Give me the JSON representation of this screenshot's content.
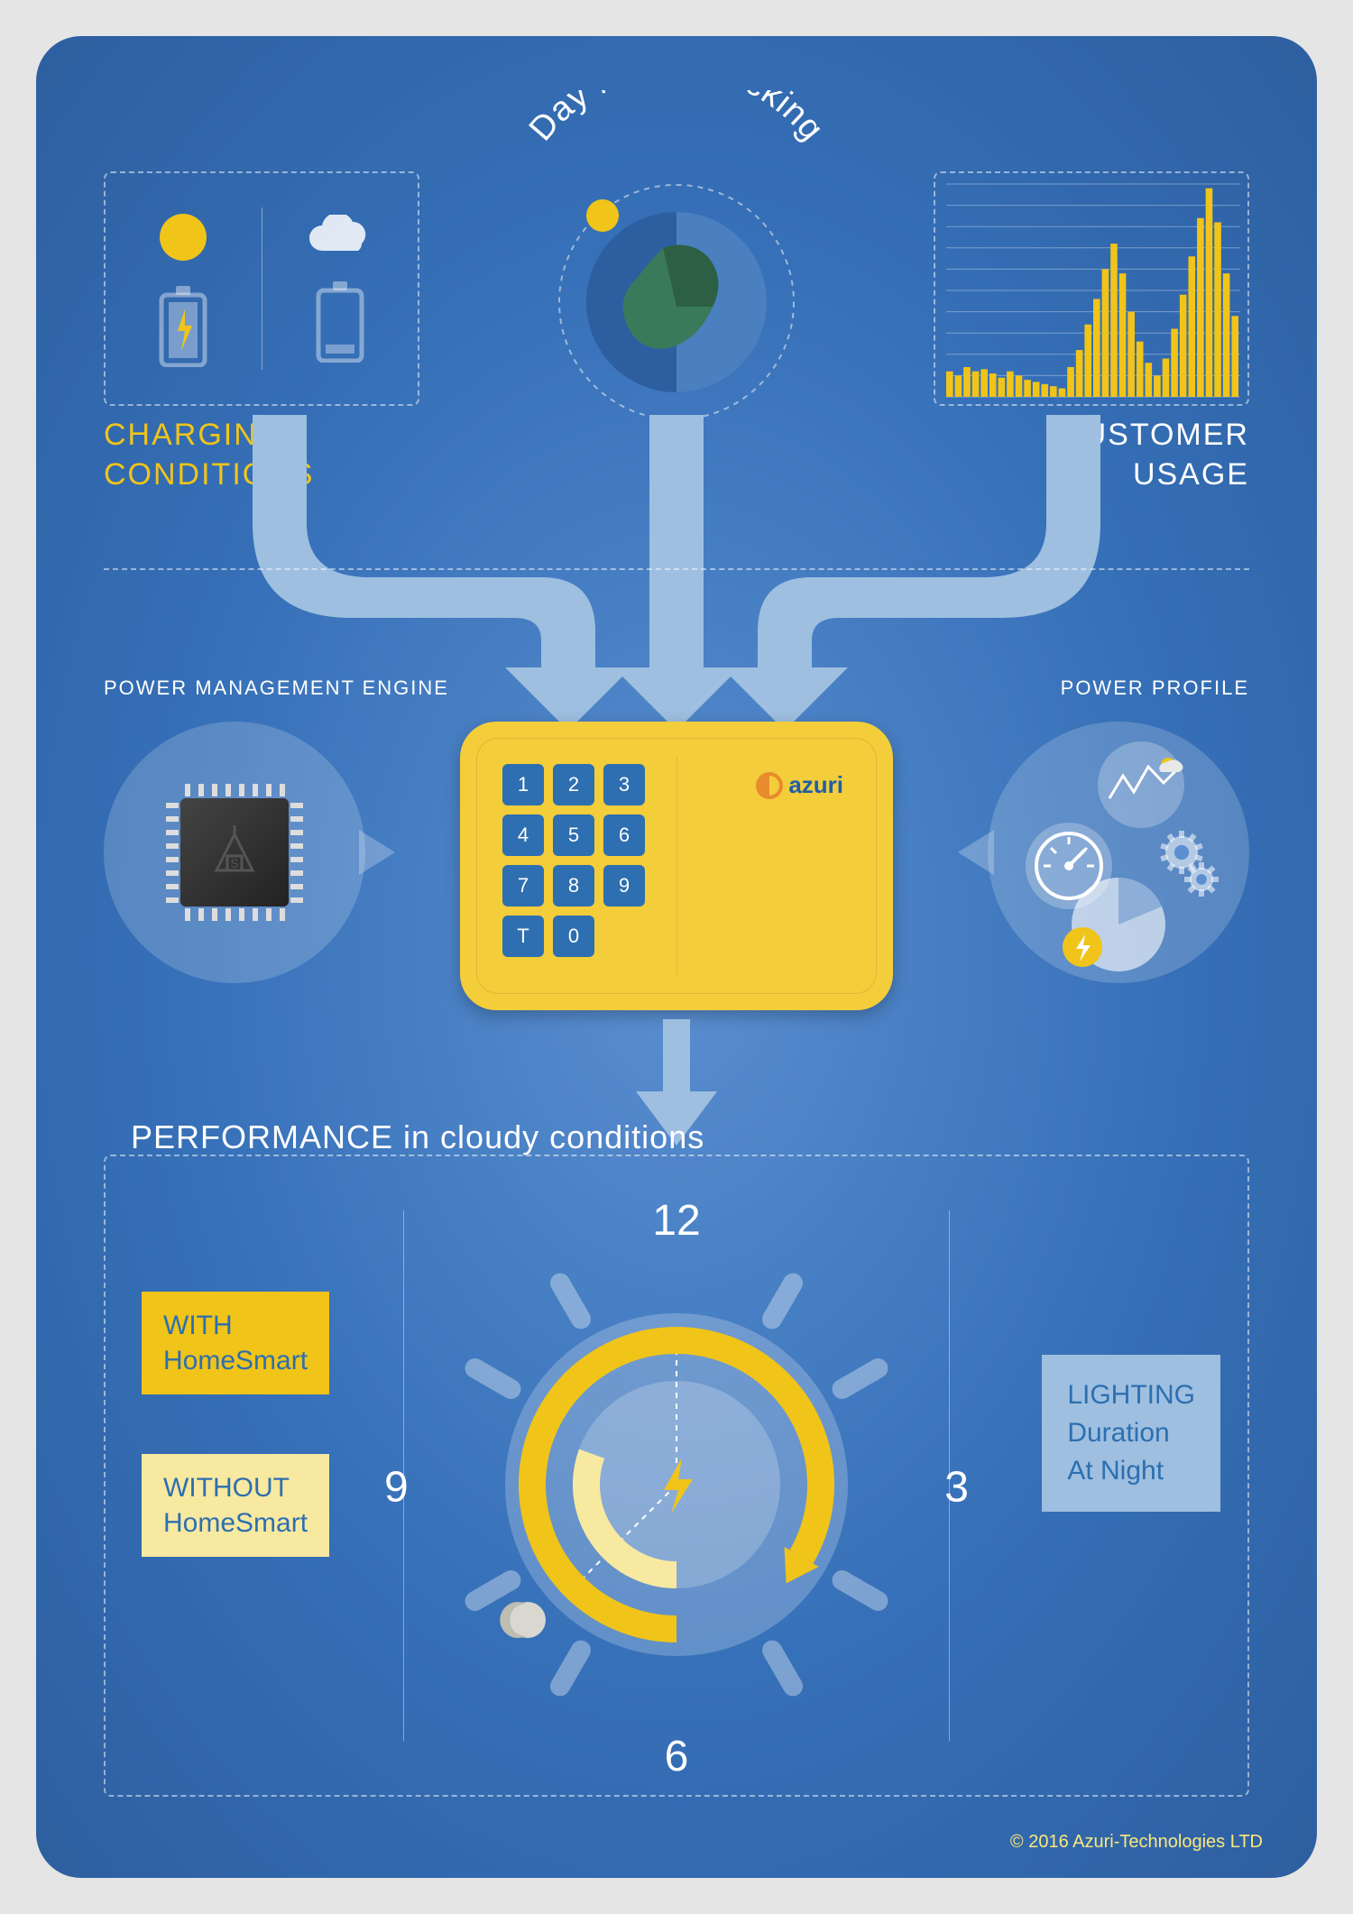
{
  "colors": {
    "bg_center": "#5a8fd0",
    "bg_edge": "#2d5fa0",
    "yellow": "#f0c419",
    "pale_yellow": "#f8e9a1",
    "light_yellow_text": "#fce77d",
    "white": "#ffffff",
    "panel": "rgba(255,255,255,0.18)",
    "key_blue": "#2d6fb0",
    "device_yellow": "#f3cd3a",
    "chip_dark": "#333333",
    "brand_blue": "#1e5fa8",
    "brand_orange": "#e88b2e",
    "callout_blue": "#9ebfe0",
    "callout_blue_text": "#2d6fb0",
    "arrow": "#9ebfe0"
  },
  "top": {
    "charging_label": "CHARGING\nCONDITIONS",
    "tracking_title": "Day Night Tracking",
    "usage_label": "CUSTOMER\nUSAGE",
    "usage_chart": {
      "type": "bar",
      "bar_color": "#f0c419",
      "grid_color": "rgba(255,255,255,0.35)",
      "ylim": [
        0,
        100
      ],
      "grid_count": 10,
      "values": [
        12,
        10,
        14,
        12,
        13,
        11,
        9,
        12,
        10,
        8,
        7,
        6,
        5,
        4,
        14,
        22,
        34,
        46,
        60,
        72,
        58,
        40,
        26,
        16,
        10,
        18,
        32,
        48,
        66,
        84,
        98,
        82,
        58,
        38
      ]
    }
  },
  "mid": {
    "engine_label": "POWER MANAGEMENT ENGINE",
    "profile_label": "POWER PROFILE",
    "keypad": [
      "1",
      "2",
      "3",
      "4",
      "5",
      "6",
      "7",
      "8",
      "9",
      "T",
      "0"
    ],
    "brand": "azuri"
  },
  "perf": {
    "title_strong": "PERFORMANCE",
    "title_rest": " in cloudy conditions",
    "with_label": "WITH\nHomeSmart",
    "without_label": "WITHOUT\nHomeSmart",
    "right_label": "LIGHTING\nDuration\nAt Night",
    "clock": {
      "numbers": {
        "12": "12",
        "3": "3",
        "6": "6",
        "9": "9"
      },
      "with_arc_deg": 300,
      "without_arc_deg": 110,
      "arc_start_deg": 180
    }
  },
  "copyright": "© 2016 Azuri-Technologies LTD"
}
